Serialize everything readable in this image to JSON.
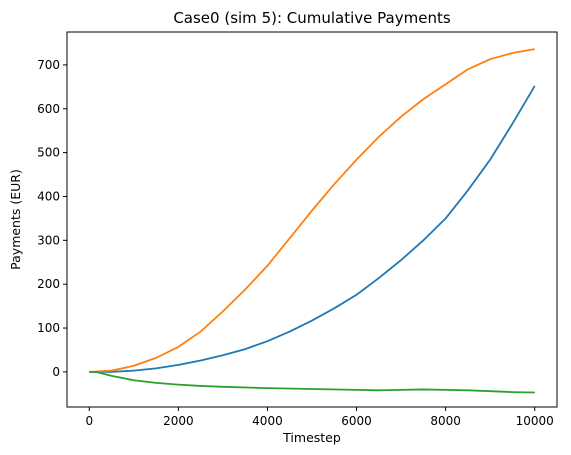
{
  "chart_data": {
    "type": "line",
    "title": "Case0 (sim 5): Cumulative Payments",
    "xlabel": "Timestep",
    "ylabel": "Payments (EUR)",
    "xlim": [
      -500,
      10500
    ],
    "ylim": [
      -80,
      775
    ],
    "xticks": [
      0,
      2000,
      4000,
      6000,
      8000,
      10000
    ],
    "yticks": [
      0,
      100,
      200,
      300,
      400,
      500,
      600,
      700
    ],
    "grid": false,
    "legend": "none",
    "series": [
      {
        "color": "#1f77b4",
        "x": [
          0,
          500,
          1000,
          1500,
          2000,
          2500,
          3000,
          3500,
          4000,
          4500,
          5000,
          5500,
          6000,
          6500,
          7000,
          7500,
          8000,
          8500,
          9000,
          9500,
          10000
        ],
        "y": [
          0,
          0,
          3,
          8,
          16,
          26,
          38,
          52,
          70,
          92,
          117,
          145,
          176,
          214,
          255,
          300,
          350,
          414,
          484,
          566,
          652
        ]
      },
      {
        "color": "#ff7f0e",
        "x": [
          0,
          500,
          1000,
          1500,
          2000,
          2500,
          3000,
          3500,
          4000,
          4500,
          5000,
          5500,
          6000,
          6500,
          7000,
          7500,
          8000,
          8500,
          9000,
          9500,
          10000
        ],
        "y": [
          0,
          3,
          14,
          32,
          57,
          92,
          138,
          188,
          242,
          305,
          368,
          428,
          484,
          536,
          582,
          622,
          656,
          690,
          713,
          727,
          736
        ]
      },
      {
        "color": "#2ca02c",
        "x": [
          0,
          200,
          500,
          1000,
          1500,
          2000,
          2500,
          3000,
          4000,
          5000,
          6000,
          6500,
          7000,
          7500,
          8000,
          8500,
          9000,
          9500,
          10000
        ],
        "y": [
          0,
          -1,
          -9,
          -19,
          -25,
          -29,
          -32,
          -34,
          -37,
          -39,
          -41,
          -42,
          -41,
          -40,
          -41,
          -42,
          -44,
          -46,
          -47
        ]
      }
    ]
  }
}
